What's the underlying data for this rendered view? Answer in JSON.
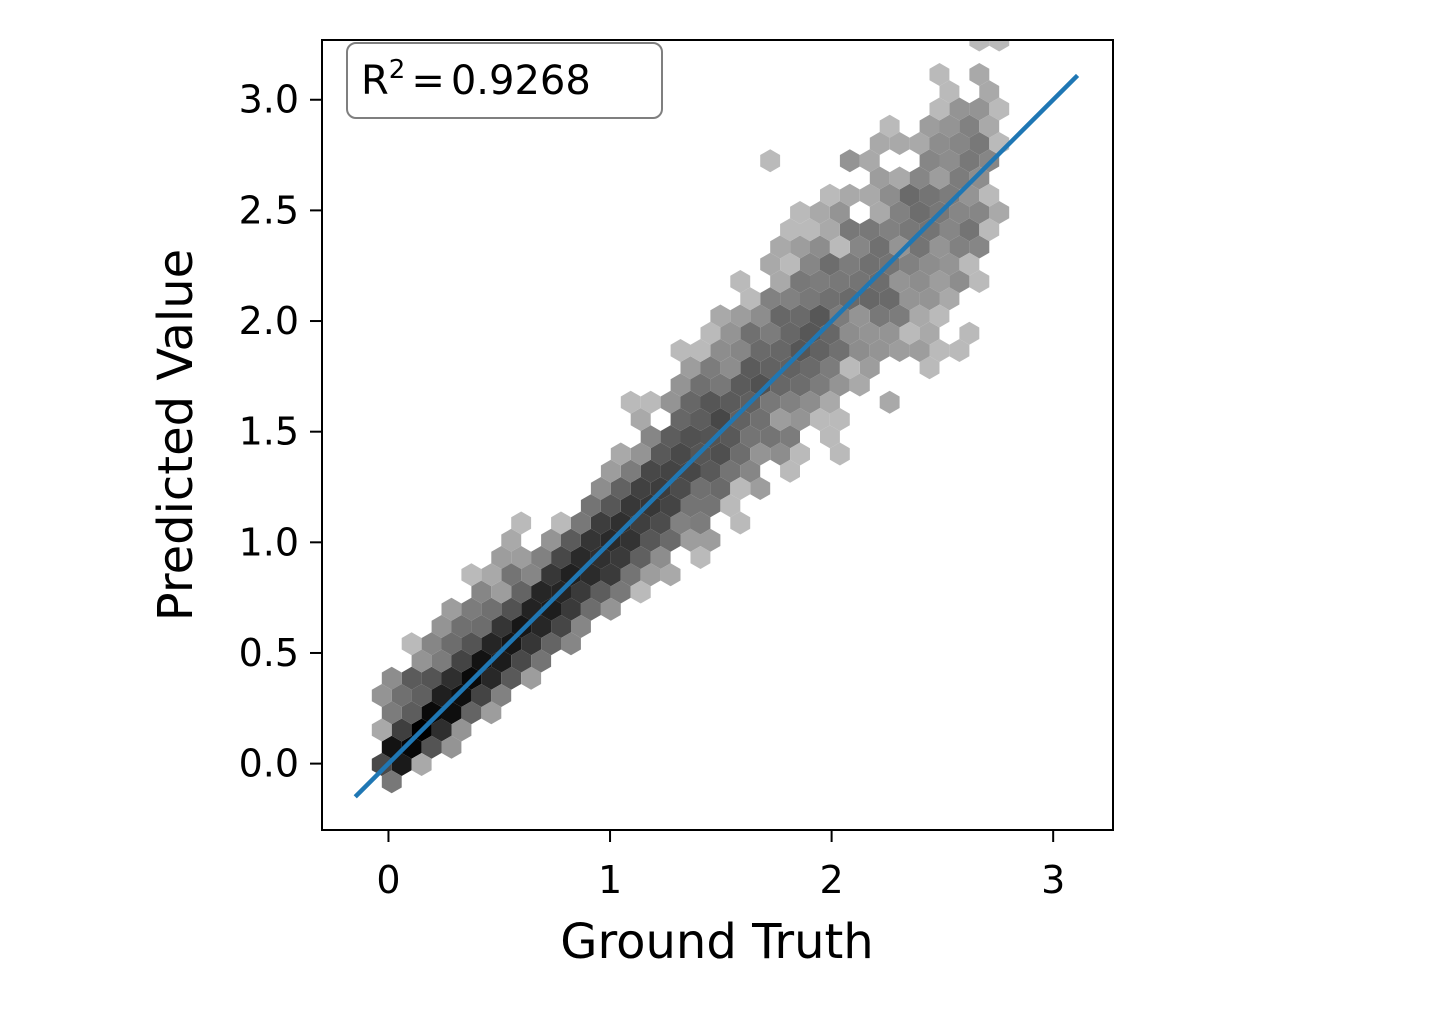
{
  "chart_data": {
    "type": "hexbin",
    "xlabel": "Ground Truth",
    "ylabel": "Predicted Value",
    "xlim": [
      -0.3,
      3.27
    ],
    "ylim": [
      -0.3,
      3.27
    ],
    "xticks": [
      {
        "value": 0,
        "label": "0"
      },
      {
        "value": 1,
        "label": "1"
      },
      {
        "value": 2,
        "label": "2"
      },
      {
        "value": 3,
        "label": "3"
      }
    ],
    "yticks": [
      {
        "value": 0.0,
        "label": "0.0"
      },
      {
        "value": 0.5,
        "label": "0.5"
      },
      {
        "value": 1.0,
        "label": "1.0"
      },
      {
        "value": 1.5,
        "label": "1.5"
      },
      {
        "value": 2.0,
        "label": "2.0"
      },
      {
        "value": 2.5,
        "label": "2.5"
      },
      {
        "value": 3.0,
        "label": "3.0"
      }
    ],
    "annotation": {
      "r_symbol": "R",
      "superscript": "2",
      "equals": "=",
      "value": "0.9268"
    },
    "fit_line": {
      "x": [
        -0.15,
        3.11
      ],
      "y": [
        -0.15,
        3.11
      ],
      "color": "#1f77b4"
    },
    "colormap": "Greys",
    "grid": false
  }
}
